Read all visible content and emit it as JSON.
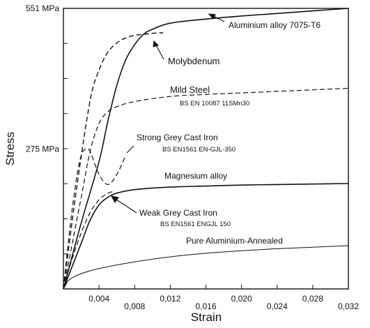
{
  "chart_data": {
    "type": "line",
    "title": "",
    "xlabel": "Strain",
    "ylabel": "Stress",
    "xlim": [
      0,
      0.032
    ],
    "ylim": [
      0,
      551
    ],
    "grid": false,
    "legend": "none",
    "x_ticks": [
      {
        "value": 0.004,
        "label": "0,004"
      },
      {
        "value": 0.008,
        "label": "0,008"
      },
      {
        "value": 0.012,
        "label": "0,012"
      },
      {
        "value": 0.016,
        "label": "0,016"
      },
      {
        "value": 0.02,
        "label": "0,020"
      },
      {
        "value": 0.024,
        "label": "0,024"
      },
      {
        "value": 0.028,
        "label": "0,028"
      },
      {
        "value": 0.032,
        "label": "0,032"
      }
    ],
    "y_ticks": [
      {
        "value": 551,
        "label": "551 MPa"
      },
      {
        "value": 275,
        "label": "275 MPa"
      }
    ],
    "series": [
      {
        "name": "Aluminium alloy 7075-T6",
        "style": "solid",
        "width": 1.6,
        "x": [
          0,
          0.002,
          0.004,
          0.005,
          0.006,
          0.007,
          0.008,
          0.009,
          0.01,
          0.012,
          0.016,
          0.02,
          0.024,
          0.028,
          0.032
        ],
        "y": [
          0,
          130,
          250,
          330,
          400,
          450,
          480,
          500,
          510,
          522,
          530,
          536,
          541,
          546,
          551
        ]
      },
      {
        "name": "Molybdenum",
        "style": "dashed",
        "width": 1.4,
        "x": [
          0,
          0.0015,
          0.003,
          0.004,
          0.005,
          0.006,
          0.007,
          0.008,
          0.009,
          0.01,
          0.0112
        ],
        "y": [
          0,
          200,
          370,
          430,
          465,
          483,
          493,
          498,
          500,
          502,
          503
        ]
      },
      {
        "name": "Mild Steel",
        "sublabel": "BS EN 10087 11SMn30",
        "style": "dashed",
        "width": 1.2,
        "x": [
          0,
          0.001,
          0.002,
          0.003,
          0.004,
          0.005,
          0.006,
          0.008,
          0.012,
          0.016,
          0.02,
          0.024,
          0.028,
          0.032
        ],
        "y": [
          0,
          90,
          180,
          270,
          325,
          348,
          358,
          368,
          378,
          382,
          385,
          388,
          391,
          394
        ]
      },
      {
        "name": "Strong Grey Cast Iron",
        "sublabel": "BS EN1561 EN-GJL-350",
        "style": "dashed",
        "width": 1.2,
        "x": [
          0,
          0.0008,
          0.0015,
          0.002,
          0.0025,
          0.003,
          0.004,
          0.005,
          0.006,
          0.007
        ],
        "y": [
          0,
          130,
          220,
          262,
          275,
          270,
          225,
          205,
          225,
          262
        ]
      },
      {
        "name": "Magnesium alloy",
        "style": "solid",
        "width": 1.6,
        "x": [
          0,
          0.002,
          0.003,
          0.004,
          0.005,
          0.006,
          0.008,
          0.012,
          0.016,
          0.02,
          0.024,
          0.028,
          0.032
        ],
        "y": [
          0,
          90,
          135,
          165,
          180,
          188,
          195,
          200,
          202,
          204,
          205,
          206,
          207
        ]
      },
      {
        "name": "Weak Grey Cast Iron",
        "sublabel": "BS EN1561 ENGJL 150",
        "style": "dashed",
        "width": 1.2,
        "x": [
          0,
          0.001,
          0.002,
          0.003,
          0.004,
          0.005,
          0.0058
        ],
        "y": [
          0,
          60,
          110,
          150,
          175,
          188,
          192
        ]
      },
      {
        "name": "Pure Aluminium-Annealed",
        "style": "solid",
        "width": 1.0,
        "x": [
          0,
          0.0005,
          0.001,
          0.002,
          0.004,
          0.008,
          0.012,
          0.016,
          0.02,
          0.024,
          0.028,
          0.032
        ],
        "y": [
          0,
          15,
          22,
          30,
          40,
          53,
          63,
          70,
          75,
          79,
          82,
          85
        ]
      }
    ]
  }
}
